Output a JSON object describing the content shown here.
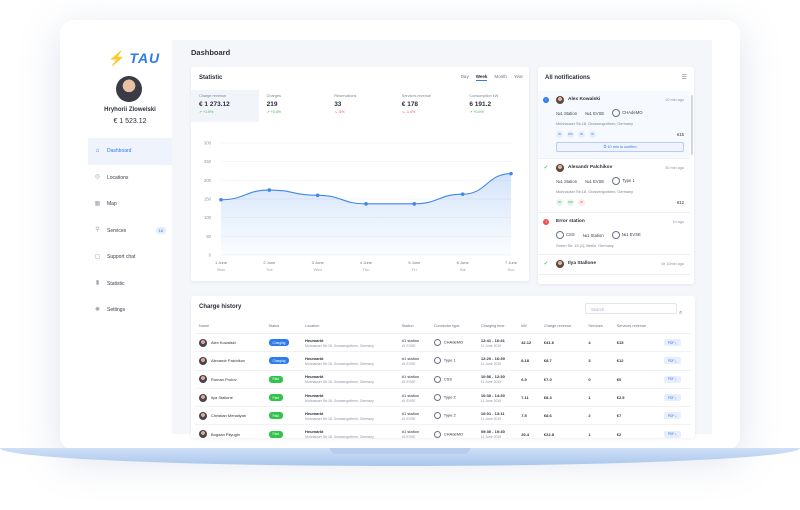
{
  "brand": {
    "logo_mark": "⚡",
    "logo_text": "TAU"
  },
  "user": {
    "name": "Hryhorii Zlowelski",
    "balance": "€ 1 523.12"
  },
  "sidebar": {
    "items": [
      {
        "label": "Dashboard",
        "icon": "home-icon",
        "glyph": "⌂",
        "active": true
      },
      {
        "label": "Locations",
        "icon": "pin-icon",
        "glyph": "◎"
      },
      {
        "label": "Map",
        "icon": "map-icon",
        "glyph": "▦"
      },
      {
        "label": "Services",
        "icon": "fork-knife-icon",
        "glyph": "⚲",
        "badge": "16"
      },
      {
        "label": "Support chat",
        "icon": "chat-icon",
        "glyph": "▢"
      },
      {
        "label": "Statistic",
        "icon": "bars-icon",
        "glyph": "▮"
      },
      {
        "label": "Settings",
        "icon": "gear-icon",
        "glyph": "✺"
      }
    ]
  },
  "header": {
    "title": "Dashboard"
  },
  "statistic": {
    "title": "Statistic",
    "periods": [
      "Day",
      "Week",
      "Month",
      "Year"
    ],
    "active_period": "Week",
    "kpis": [
      {
        "label": "Charge revenue",
        "value": "€ 1 273.12",
        "change": "+1.5%",
        "dir": "up"
      },
      {
        "label": "Charges",
        "value": "219",
        "change": "+0.4%",
        "dir": "up"
      },
      {
        "label": "Reservations",
        "value": "33",
        "change": "-5%",
        "dir": "down"
      },
      {
        "label": "Services revenue",
        "value": "€ 178",
        "change": "-1.4%",
        "dir": "down"
      },
      {
        "label": "Consumption kW",
        "value": "6 191.2",
        "change": "+0.5%",
        "dir": "up"
      }
    ]
  },
  "chart_data": {
    "type": "line",
    "categories": [
      "1 June Mon",
      "2 June Tue",
      "3 June Wed",
      "4 June Thu",
      "5 June Fri",
      "6 June Sat",
      "7 June Sun"
    ],
    "x_top": [
      "1 June",
      "2 June",
      "3 June",
      "4 June",
      "5 June",
      "6 June",
      "7 June"
    ],
    "x_bottom": [
      "Mon",
      "Tue",
      "Wed",
      "Thu",
      "Fri",
      "Sat",
      "Sun"
    ],
    "values": [
      148,
      174,
      160,
      137,
      137,
      163,
      218
    ],
    "ylim": [
      0,
      300
    ],
    "yticks": [
      0,
      50,
      100,
      150,
      200,
      250,
      300
    ],
    "grid": true,
    "color": "#3f86ea"
  },
  "notifications": {
    "title": "All notifications",
    "filter_icon": "sliders-icon",
    "confirm_label": "10 min to confirm",
    "items": [
      {
        "kind": "info",
        "name": "Alex Kowalski",
        "time": "10 min ago",
        "tags": [
          "№1 Station",
          "№1 EVSE",
          "CHAdeMO"
        ],
        "address": "Muhnauser Str.18, Grossengothern, Germany",
        "services": [
          "W",
          "WC",
          "W",
          "W"
        ],
        "service_colors": [
          "blue",
          "blue",
          "blue",
          "blue"
        ],
        "amount": "€15",
        "confirm": true
      },
      {
        "kind": "ok",
        "name": "Alexandr Palchikov",
        "time": "30 min ago",
        "tags": [
          "№1 Station",
          "№1 EVSE",
          "Type 1"
        ],
        "address": "Muhnauser Str.18, Grossengothern, Germany",
        "services": [
          "W",
          "WC",
          "W"
        ],
        "service_colors": [
          "green",
          "green",
          "red"
        ],
        "amount": "€12",
        "confirm": false
      },
      {
        "kind": "err",
        "name": "Error station",
        "time": "1h ago",
        "tags": [
          "CSS",
          "№1 Station",
          "№1 EVSE"
        ],
        "address": "Green Str. 15 (1), Berlin, Germany",
        "services": [],
        "service_colors": [],
        "amount": "",
        "confirm": false
      },
      {
        "kind": "ok",
        "name": "Ilya Stallone",
        "time": "1h 10min ago",
        "tags": [],
        "address": "",
        "services": [],
        "service_colors": [],
        "amount": "",
        "confirm": false
      }
    ]
  },
  "charge_history": {
    "title": "Charge history",
    "search_placeholder": "Search",
    "columns": [
      "Name",
      "Status",
      "Location",
      "Station",
      "Connector type",
      "Charging time",
      "kW",
      "Charge revenue",
      "Services",
      "Services revenue",
      ""
    ],
    "rows": [
      {
        "name": "Alex Kowalski",
        "status": "Charging",
        "status_color": "blue",
        "loc_name": "Heumarkt",
        "loc_addr": "Muhnauser Str.18, Grossengothern, Germany",
        "station": "#1 station",
        "evse": "#1 EVSE",
        "connector": "CHAdeMO",
        "time": "12:41 - 16:41",
        "date": "11 June 2019",
        "kw": "42.12",
        "revenue": "€41.6",
        "services": "4",
        "services_revenue": "€15",
        "pdf": "PDF"
      },
      {
        "name": "Alexandr Palchikov",
        "status": "Charging",
        "status_color": "blue",
        "loc_name": "Heumarkt",
        "loc_addr": "Muhnauser Str.18, Grossengothern, Germany",
        "station": "#1 station",
        "evse": "#1 EVSE",
        "connector": "Type 1",
        "time": "12:20 - 16:39",
        "date": "11 June 2019",
        "kw": "8.18",
        "revenue": "€8.7",
        "services": "3",
        "services_revenue": "€12",
        "pdf": "PDF"
      },
      {
        "name": "Roman Protov",
        "status": "Paid",
        "status_color": "green",
        "loc_name": "Heumarkt",
        "loc_addr": "Muhnauser Str.18, Grossengothern, Germany",
        "station": "#1 station",
        "evse": "#1 EVSE",
        "connector": "CSS",
        "time": "10:56 - 12:30",
        "date": "11 June 2019",
        "kw": "6.9",
        "revenue": "€7.0",
        "services": "0",
        "services_revenue": "€0",
        "pdf": "PDF"
      },
      {
        "name": "Ilya Stallone",
        "status": "Paid",
        "status_color": "green",
        "loc_name": "Heumarkt",
        "loc_addr": "Muhnauser Str.18, Grossengothern, Germany",
        "station": "#1 station",
        "evse": "#1 EVSE",
        "connector": "Type 2",
        "time": "10:30 - 14:30",
        "date": "11 June 2019",
        "kw": "7.11",
        "revenue": "€8.3",
        "services": "1",
        "services_revenue": "€2.5",
        "pdf": "PDF"
      },
      {
        "name": "Christian Menaliyan",
        "status": "Paid",
        "status_color": "green",
        "loc_name": "Heumarkt",
        "loc_addr": "Muhnauser Str.18, Grossengothern, Germany",
        "station": "#1 station",
        "evse": "#1 EVSE",
        "connector": "Type 2",
        "time": "10:01 - 13:11",
        "date": "11 June 2019",
        "kw": "7.5",
        "revenue": "€8.6",
        "services": "2",
        "services_revenue": "€7",
        "pdf": "PDF"
      },
      {
        "name": "Bogdan Pilyugin",
        "status": "Paid",
        "status_color": "green",
        "loc_name": "Heumarkt",
        "loc_addr": "Muhnauser Str.18, Grossengothern, Germany",
        "station": "#1 station",
        "evse": "#1 EVSE",
        "connector": "CHAdeMO",
        "time": "09:30 - 10:30",
        "date": "11 June 2019",
        "kw": "20.4",
        "revenue": "€22.8",
        "services": "1",
        "services_revenue": "€2",
        "pdf": "PDF"
      }
    ]
  }
}
